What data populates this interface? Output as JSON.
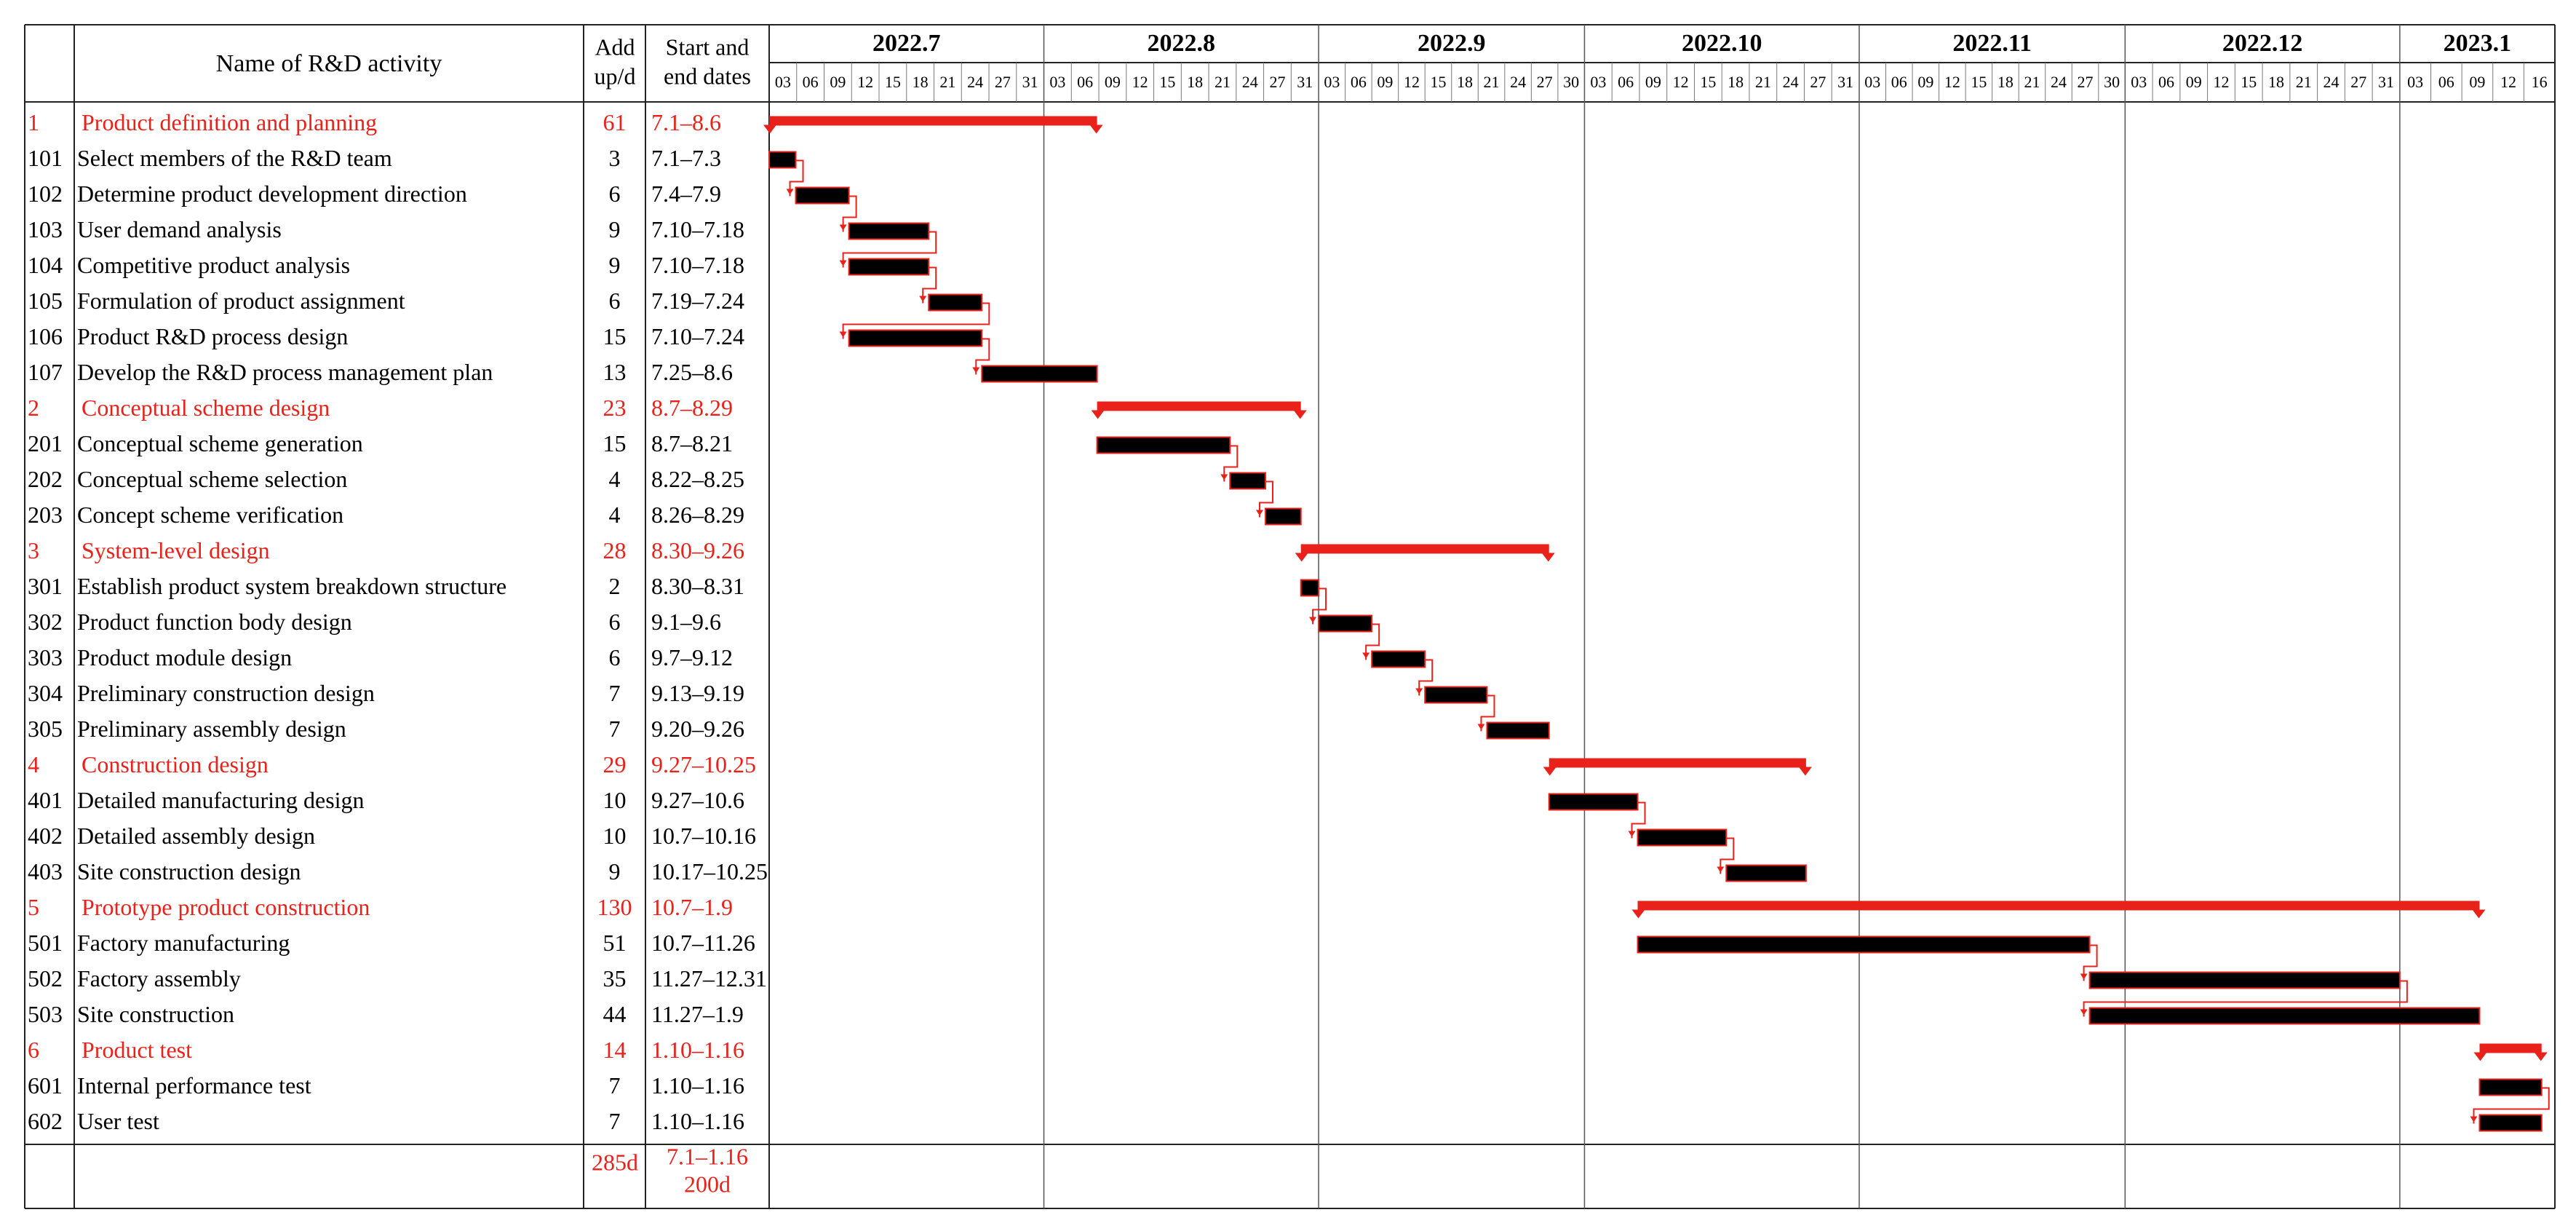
{
  "header": {
    "name": "Name of R&D activity",
    "days": [
      "Add",
      "up/d"
    ],
    "dates": [
      "Start and",
      "end dates"
    ]
  },
  "timeline": [
    {
      "month": "2022.7",
      "days": [
        "03",
        "06",
        "09",
        "12",
        "15",
        "18",
        "21",
        "24",
        "27",
        "31"
      ]
    },
    {
      "month": "2022.8",
      "days": [
        "03",
        "06",
        "09",
        "12",
        "15",
        "18",
        "21",
        "24",
        "27",
        "31"
      ]
    },
    {
      "month": "2022.9",
      "days": [
        "03",
        "06",
        "09",
        "12",
        "15",
        "18",
        "21",
        "24",
        "27",
        "30"
      ]
    },
    {
      "month": "2022.10",
      "days": [
        "03",
        "06",
        "09",
        "12",
        "15",
        "18",
        "21",
        "24",
        "27",
        "31"
      ]
    },
    {
      "month": "2022.11",
      "days": [
        "03",
        "06",
        "09",
        "12",
        "15",
        "18",
        "21",
        "24",
        "27",
        "30"
      ]
    },
    {
      "month": "2022.12",
      "days": [
        "03",
        "06",
        "09",
        "12",
        "15",
        "18",
        "21",
        "24",
        "27",
        "31"
      ]
    },
    {
      "month": "2023.1",
      "days": [
        "03",
        "06",
        "09",
        "12",
        "16"
      ]
    }
  ],
  "tasks": [
    {
      "id": "1",
      "name": "Product definition and planning",
      "days": 61,
      "dates": "7.1–8.6",
      "summary": true
    },
    {
      "id": "101",
      "name": "Select members of the R&D team",
      "days": 3,
      "dates": "7.1–7.3"
    },
    {
      "id": "102",
      "name": "Determine product development direction",
      "days": 6,
      "dates": "7.4–7.9"
    },
    {
      "id": "103",
      "name": "User demand analysis",
      "days": 9,
      "dates": "7.10–7.18"
    },
    {
      "id": "104",
      "name": "Competitive product analysis",
      "days": 9,
      "dates": "7.10–7.18"
    },
    {
      "id": "105",
      "name": "Formulation of product assignment",
      "days": 6,
      "dates": "7.19–7.24"
    },
    {
      "id": "106",
      "name": "Product R&D process design",
      "days": 15,
      "dates": "7.10–7.24"
    },
    {
      "id": "107",
      "name": "Develop the R&D process management plan",
      "days": 13,
      "dates": "7.25–8.6"
    },
    {
      "id": "2",
      "name": "Conceptual scheme design",
      "days": 23,
      "dates": "8.7–8.29",
      "summary": true
    },
    {
      "id": "201",
      "name": "Conceptual scheme generation",
      "days": 15,
      "dates": "8.7–8.21"
    },
    {
      "id": "202",
      "name": "Conceptual scheme selection",
      "days": 4,
      "dates": "8.22–8.25"
    },
    {
      "id": "203",
      "name": "Concept scheme verification",
      "days": 4,
      "dates": "8.26–8.29"
    },
    {
      "id": "3",
      "name": "System-level design",
      "days": 28,
      "dates": "8.30–9.26",
      "summary": true
    },
    {
      "id": "301",
      "name": "Establish product system breakdown structure",
      "days": 2,
      "dates": "8.30–8.31"
    },
    {
      "id": "302",
      "name": "Product function body design",
      "days": 6,
      "dates": "9.1–9.6"
    },
    {
      "id": "303",
      "name": "Product module design",
      "days": 6,
      "dates": "9.7–9.12"
    },
    {
      "id": "304",
      "name": "Preliminary construction design",
      "days": 7,
      "dates": "9.13–9.19"
    },
    {
      "id": "305",
      "name": "Preliminary assembly design",
      "days": 7,
      "dates": "9.20–9.26"
    },
    {
      "id": "4",
      "name": "Construction design",
      "days": 29,
      "dates": "9.27–10.25",
      "summary": true
    },
    {
      "id": "401",
      "name": "Detailed manufacturing design",
      "days": 10,
      "dates": "9.27–10.6"
    },
    {
      "id": "402",
      "name": "Detailed assembly design",
      "days": 10,
      "dates": "10.7–10.16"
    },
    {
      "id": "403",
      "name": "Site construction design",
      "days": 9,
      "dates": "10.17–10.25"
    },
    {
      "id": "5",
      "name": "Prototype product construction",
      "days": 130,
      "dates": "10.7–1.9",
      "summary": true
    },
    {
      "id": "501",
      "name": "Factory manufacturing",
      "days": 51,
      "dates": "10.7–11.26"
    },
    {
      "id": "502",
      "name": "Factory assembly",
      "days": 35,
      "dates": "11.27–12.31"
    },
    {
      "id": "503",
      "name": "Site construction",
      "days": 44,
      "dates": "11.27–1.9"
    },
    {
      "id": "6",
      "name": "Product test",
      "days": 14,
      "dates": "1.10–1.16",
      "summary": true
    },
    {
      "id": "601",
      "name": "Internal performance test",
      "days": 7,
      "dates": "1.10–1.16"
    },
    {
      "id": "602",
      "name": "User test",
      "days": 7,
      "dates": "1.10–1.16"
    }
  ],
  "total": {
    "days": "285d",
    "dates": "7.1–1.16",
    "span": "200d"
  }
}
